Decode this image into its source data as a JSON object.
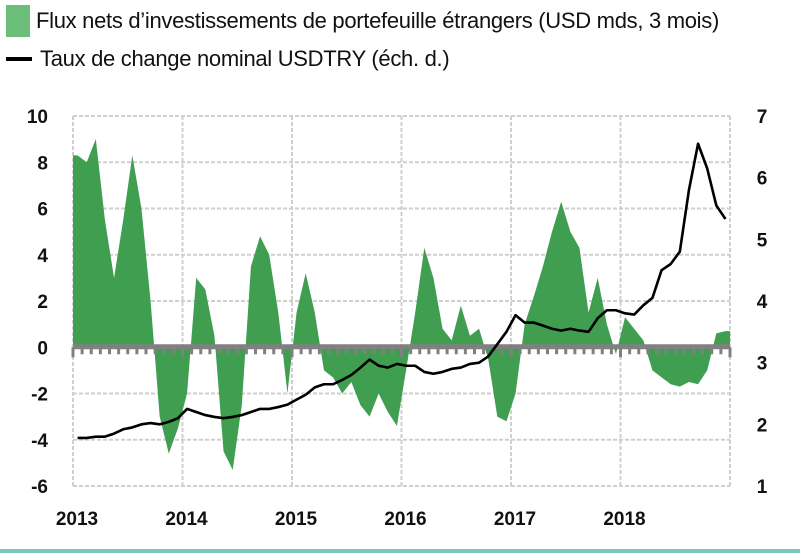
{
  "legend": {
    "series1_label": "Flux nets d’investissements de portefeuille étrangers (USD mds, 3 mois)",
    "series2_label": "Taux de change nominal USDTRY (éch. d.)"
  },
  "colors": {
    "flows_fill": "#3f9e50",
    "legend_swatch": "#6cbf7a",
    "fx_line": "#000000",
    "zero_axis": "#808080",
    "grid": "#cfcfcf",
    "bottom_rule": "#7cc7b6"
  },
  "chart_data": {
    "type": "area",
    "title": "",
    "xlabel": "",
    "ylabel": "USD mds",
    "y2label": "USDTRY",
    "x_tick_labels": [
      "2013",
      "2014",
      "2015",
      "2016",
      "2017",
      "2018"
    ],
    "y_tick_labels": [
      "10",
      "8",
      "6",
      "4",
      "2",
      "0",
      "-2",
      "-4",
      "-6"
    ],
    "y2_tick_labels": [
      "7",
      "6",
      "5",
      "4",
      "3",
      "2",
      "1"
    ],
    "ylim": [
      -6,
      10
    ],
    "y2lim": [
      1,
      7
    ],
    "xlim": [
      2013.0,
      2019.0
    ],
    "grid": true,
    "legend_position": "top-left",
    "frequency": "monthly",
    "start": "2013-01",
    "series": [
      {
        "name": "Flux nets d’investissements de portefeuille étrangers (USD mds, 3 mois)",
        "type": "area",
        "axis": "left",
        "values": [
          8.3,
          8.0,
          9.0,
          5.5,
          3.0,
          5.5,
          8.3,
          6.0,
          2.0,
          -3.0,
          -4.6,
          -3.5,
          -2.0,
          3.0,
          2.5,
          0.5,
          -4.5,
          -5.3,
          -2.5,
          3.5,
          4.8,
          4.0,
          1.5,
          -2.0,
          1.5,
          3.2,
          1.5,
          -1.0,
          -1.3,
          -2.0,
          -1.5,
          -2.5,
          -3.0,
          -2.0,
          -2.8,
          -3.4,
          -1.0,
          1.5,
          4.3,
          3.0,
          0.8,
          0.3,
          1.8,
          0.5,
          0.8,
          -0.5,
          -3.0,
          -3.2,
          -2.0,
          1.0,
          2.2,
          3.5,
          5.0,
          6.3,
          5.0,
          4.3,
          1.5,
          3.0,
          1.0,
          -0.3,
          1.3,
          0.8,
          0.3,
          -1.0,
          -1.3,
          -1.6,
          -1.7,
          -1.5,
          -1.6,
          -1.0,
          0.6,
          0.7
        ]
      },
      {
        "name": "Taux de change nominal USDTRY (éch. d.)",
        "type": "line",
        "axis": "right",
        "values": [
          1.78,
          1.78,
          1.8,
          1.8,
          1.85,
          1.92,
          1.95,
          2.0,
          2.02,
          2.0,
          2.04,
          2.1,
          2.25,
          2.2,
          2.15,
          2.12,
          2.1,
          2.12,
          2.15,
          2.2,
          2.25,
          2.25,
          2.28,
          2.32,
          2.4,
          2.48,
          2.6,
          2.65,
          2.65,
          2.72,
          2.8,
          2.92,
          3.05,
          2.95,
          2.92,
          2.98,
          2.95,
          2.95,
          2.85,
          2.82,
          2.85,
          2.9,
          2.92,
          2.98,
          3.0,
          3.1,
          3.3,
          3.5,
          3.77,
          3.65,
          3.65,
          3.6,
          3.55,
          3.52,
          3.55,
          3.52,
          3.5,
          3.72,
          3.85,
          3.85,
          3.8,
          3.78,
          3.93,
          4.05,
          4.5,
          4.6,
          4.8,
          5.8,
          6.55,
          6.15,
          5.55,
          5.33
        ]
      }
    ]
  }
}
